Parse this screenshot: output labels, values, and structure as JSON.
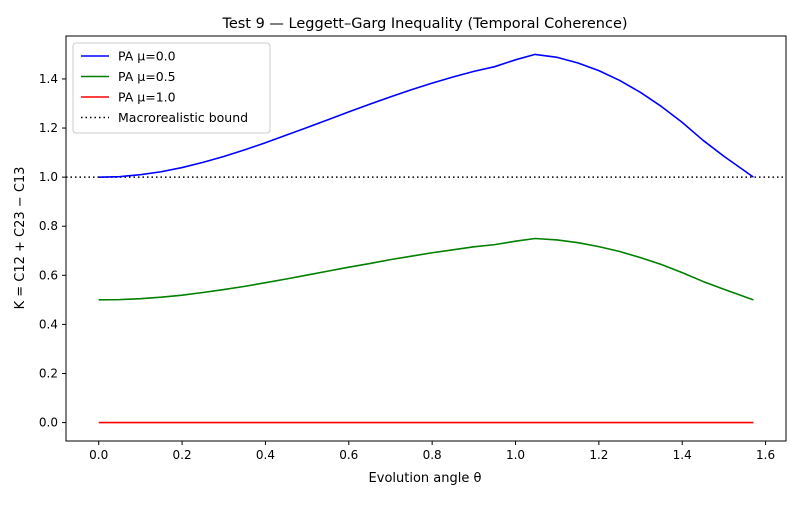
{
  "chart_data": {
    "type": "line",
    "title": "Test 9 — Leggett–Garg Inequality (Temporal Coherence)",
    "xlabel": "Evolution angle θ",
    "ylabel": "K = C12 + C23 − C13",
    "xlim": [
      -0.0785,
      1.649
    ],
    "ylim": [
      -0.075,
      1.575
    ],
    "xticks": [
      0.0,
      0.2,
      0.4,
      0.6,
      0.8,
      1.0,
      1.2,
      1.4,
      1.6
    ],
    "xtick_labels": [
      "0.0",
      "0.2",
      "0.4",
      "0.6",
      "0.8",
      "1.0",
      "1.2",
      "1.4",
      "1.6"
    ],
    "yticks": [
      0.0,
      0.2,
      0.4,
      0.6,
      0.8,
      1.0,
      1.2,
      1.4
    ],
    "ytick_labels": [
      "0.0",
      "0.2",
      "0.4",
      "0.6",
      "0.8",
      "1.0",
      "1.2",
      "1.4"
    ],
    "grid": false,
    "legend_position": "top-left",
    "x": [
      0.0,
      0.05,
      0.1,
      0.15,
      0.2,
      0.25,
      0.3,
      0.35,
      0.4,
      0.45,
      0.5,
      0.55,
      0.6,
      0.65,
      0.7,
      0.75,
      0.8,
      0.85,
      0.9,
      0.95,
      1.0,
      1.047,
      1.1,
      1.15,
      1.2,
      1.25,
      1.3,
      1.35,
      1.4,
      1.45,
      1.5,
      1.5708
    ],
    "series": [
      {
        "name": "PA μ=0.0",
        "color": "#0000ff",
        "style": "solid",
        "values": [
          1.0,
          1.002,
          1.01,
          1.022,
          1.039,
          1.06,
          1.084,
          1.111,
          1.14,
          1.171,
          1.202,
          1.234,
          1.266,
          1.297,
          1.327,
          1.356,
          1.383,
          1.408,
          1.431,
          1.45,
          1.478,
          1.5,
          1.488,
          1.465,
          1.434,
          1.394,
          1.345,
          1.288,
          1.223,
          1.15,
          1.085,
          1.0
        ]
      },
      {
        "name": "PA μ=0.5",
        "color": "#008000",
        "style": "solid",
        "values": [
          0.5,
          0.501,
          0.505,
          0.511,
          0.519,
          0.53,
          0.542,
          0.555,
          0.57,
          0.585,
          0.601,
          0.617,
          0.633,
          0.648,
          0.664,
          0.678,
          0.692,
          0.704,
          0.716,
          0.725,
          0.739,
          0.75,
          0.744,
          0.733,
          0.717,
          0.697,
          0.672,
          0.644,
          0.611,
          0.575,
          0.543,
          0.5
        ]
      },
      {
        "name": "PA μ=1.0",
        "color": "#ff0000",
        "style": "solid",
        "values": [
          0.0,
          0.0,
          0.0,
          0.0,
          0.0,
          0.0,
          0.0,
          0.0,
          0.0,
          0.0,
          0.0,
          0.0,
          0.0,
          0.0,
          0.0,
          0.0,
          0.0,
          0.0,
          0.0,
          0.0,
          0.0,
          0.0,
          0.0,
          0.0,
          0.0,
          0.0,
          0.0,
          0.0,
          0.0,
          0.0,
          0.0,
          0.0
        ]
      }
    ],
    "reference_lines": [
      {
        "name": "Macrorealistic bound",
        "y": 1.0,
        "color": "#000000",
        "style": "dotted"
      }
    ]
  }
}
